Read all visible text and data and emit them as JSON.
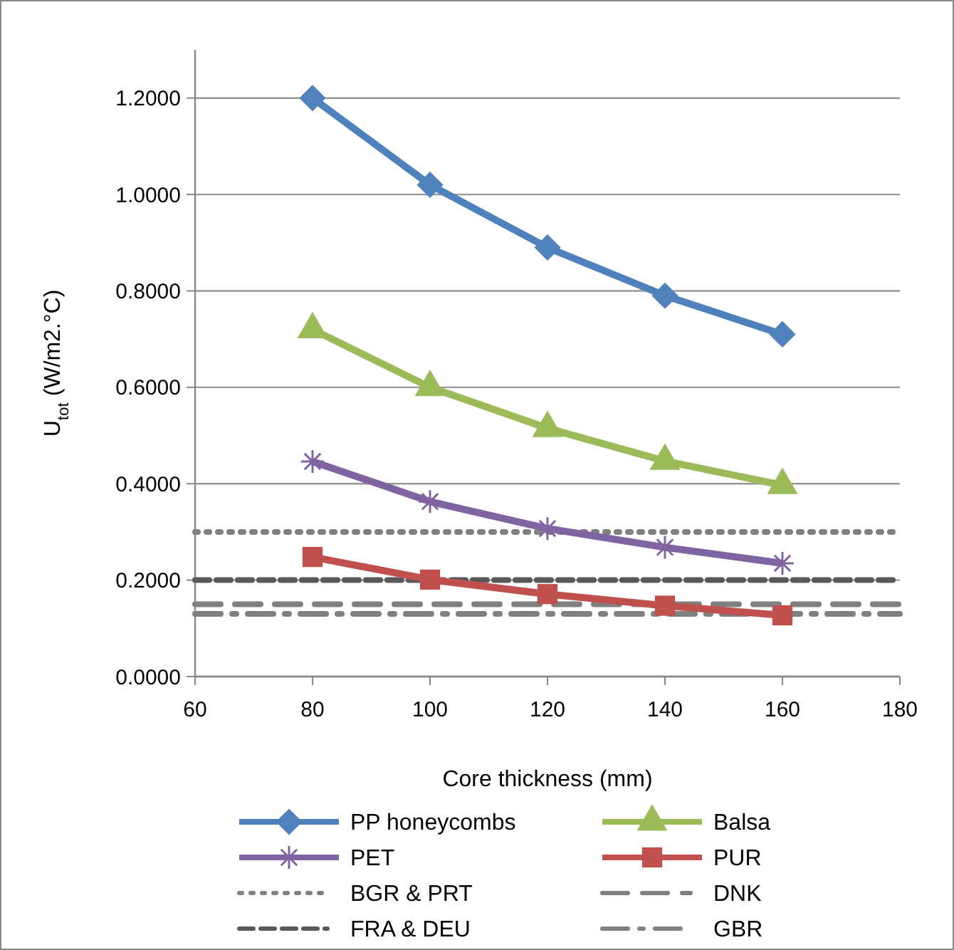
{
  "chart_data": {
    "type": "line",
    "xlabel": "Core thickness (mm)",
    "ylabel": "U$_{tot}$ (W/m2.°C)",
    "x": [
      80,
      100,
      120,
      140,
      160
    ],
    "xlim": [
      60,
      180
    ],
    "xticks": [
      60,
      80,
      100,
      120,
      140,
      160,
      180
    ],
    "ylim": [
      0,
      1.3
    ],
    "yticks": [
      {
        "value": 0,
        "label": "0.0000"
      },
      {
        "value": 0.2,
        "label": "0.2000"
      },
      {
        "value": 0.4,
        "label": "0.4000"
      },
      {
        "value": 0.6,
        "label": "0.6000"
      },
      {
        "value": 0.8,
        "label": "0.8000"
      },
      {
        "value": 1.0,
        "label": "1.0000"
      },
      {
        "value": 1.2,
        "label": "1.2000"
      }
    ],
    "grid": "y",
    "legend": "bottom",
    "line_style": "solid",
    "series": [
      {
        "name": "PP honeycombs",
        "color": "#4f81bd",
        "marker": "diamond",
        "values": [
          1.2,
          1.02,
          0.89,
          0.79,
          0.71
        ]
      },
      {
        "name": "Balsa",
        "color": "#9bbb59",
        "marker": "triangle",
        "values": [
          0.72,
          0.6,
          0.515,
          0.447,
          0.397
        ]
      },
      {
        "name": "PET",
        "color": "#8064a2",
        "marker": "cross",
        "values": [
          0.446,
          0.363,
          0.307,
          0.268,
          0.235
        ]
      },
      {
        "name": "PUR",
        "color": "#c0504d",
        "marker": "square",
        "values": [
          0.248,
          0.201,
          0.171,
          0.147,
          0.127
        ]
      }
    ],
    "ref_lines": [
      {
        "axis": "y",
        "value": 0.3,
        "label": "BGR & PRT",
        "color": "#808080",
        "line_style": "dotted"
      },
      {
        "axis": "y",
        "value": 0.15,
        "label": "DNK",
        "color": "#808080",
        "line_style": "longdash"
      },
      {
        "axis": "y",
        "value": 0.2,
        "label": "FRA & DEU",
        "color": "#595959",
        "line_style": "dashed"
      },
      {
        "axis": "y",
        "value": 0.13,
        "label": "GBR",
        "color": "#808080",
        "line_style": "dashdot"
      }
    ]
  }
}
